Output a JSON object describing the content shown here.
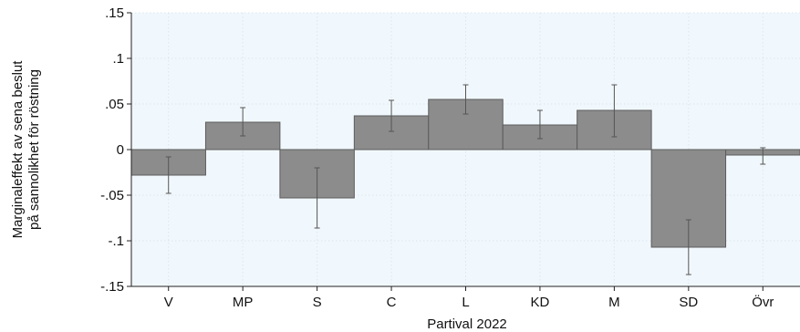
{
  "chart_data": {
    "type": "bar",
    "title": "",
    "xlabel": "Partival 2022",
    "ylabel_lines": [
      "Marginaleffekt av sena beslut",
      "på sannolikhet för röstning"
    ],
    "categories": [
      "V",
      "MP",
      "S",
      "C",
      "L",
      "KD",
      "M",
      "SD",
      "Övr"
    ],
    "values": [
      -0.028,
      0.03,
      -0.053,
      0.037,
      0.055,
      0.027,
      0.043,
      -0.107,
      -0.006
    ],
    "ci_low": [
      -0.048,
      0.015,
      -0.086,
      0.02,
      0.039,
      0.012,
      0.014,
      -0.137,
      -0.016
    ],
    "ci_high": [
      -0.008,
      0.046,
      -0.02,
      0.054,
      0.071,
      0.043,
      0.071,
      -0.077,
      0.002
    ],
    "ylim": [
      -0.15,
      0.15
    ],
    "yticks": [
      0.15,
      0.1,
      0.05,
      0,
      -0.05,
      -0.1,
      -0.15
    ],
    "ytick_labels": [
      ".15",
      ".1",
      ".05",
      "0",
      "-.05",
      "-.1",
      "-.15"
    ],
    "grid": true,
    "colors": {
      "plot_background": "#f1f8fd",
      "bar_fill": "#8c8c8c",
      "bar_stroke": "#5c5c5c",
      "error_bar": "#555555",
      "grid": "#dde6ec",
      "axis": "#222222"
    }
  }
}
